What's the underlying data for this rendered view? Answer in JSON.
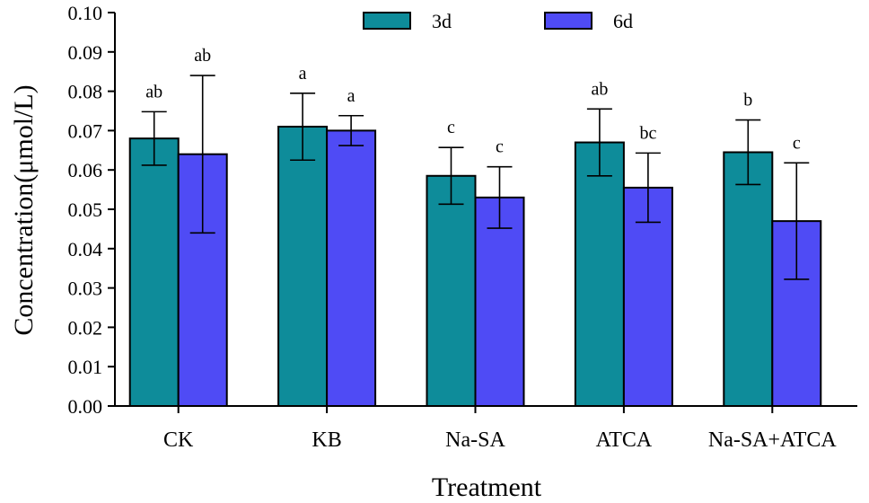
{
  "chart_data": {
    "type": "bar",
    "title": "",
    "xlabel": "Treatment",
    "ylabel": "Concentration(μmol/L)",
    "ylim": [
      0,
      0.1
    ],
    "yticks": [
      "0.00",
      "0.01",
      "0.02",
      "0.03",
      "0.04",
      "0.05",
      "0.06",
      "0.07",
      "0.08",
      "0.09",
      "0.10"
    ],
    "categories": [
      "CK",
      "KB",
      "Na-SA",
      "ATCA",
      "Na-SA+ATCA"
    ],
    "series": [
      {
        "name": "3d",
        "color": "#0E8C9A",
        "values": [
          0.068,
          0.071,
          0.0585,
          0.067,
          0.0645
        ],
        "errors": [
          0.0068,
          0.0085,
          0.0072,
          0.0085,
          0.0082
        ],
        "labels": [
          "ab",
          "a",
          "c",
          "ab",
          "b"
        ]
      },
      {
        "name": "6d",
        "color": "#4F4BF5",
        "values": [
          0.064,
          0.07,
          0.053,
          0.0555,
          0.047
        ],
        "errors": [
          0.02,
          0.0038,
          0.0078,
          0.0088,
          0.0148
        ],
        "labels": [
          "ab",
          "a",
          "c",
          "bc",
          "c"
        ]
      }
    ],
    "legend_position": "top",
    "grid": false
  }
}
